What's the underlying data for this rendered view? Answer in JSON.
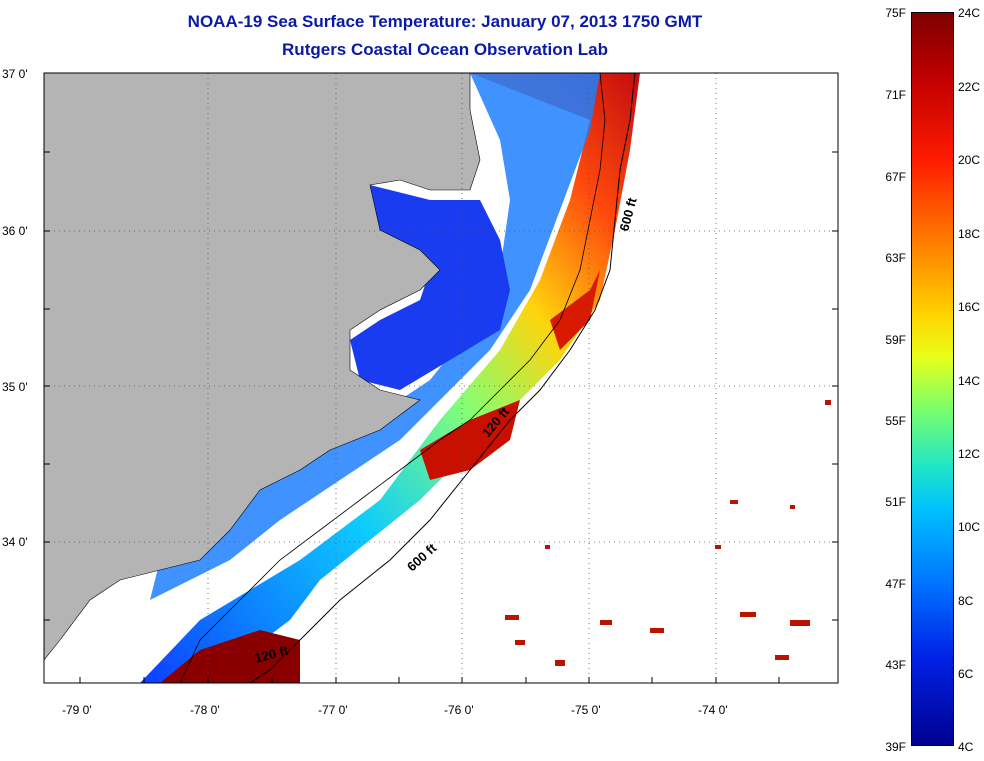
{
  "header": {
    "title": "NOAA-19 Sea Surface Temperature:  January 07, 2013 1750 GMT",
    "subtitle": "Rutgers Coastal Ocean Observation Lab"
  },
  "map": {
    "lat_labels": [
      "37 0'",
      "36 0'",
      "35 0'",
      "34 0'"
    ],
    "lon_labels": [
      "-79 0'",
      "-78 0'",
      "-77 0'",
      "-76 0'",
      "-75 0'",
      "-74 0'"
    ],
    "contour_labels": [
      "600 ft",
      "120 ft",
      "600 ft",
      "120 ft"
    ],
    "colors": {
      "land": "#b4b4b4",
      "ocean_cold": "#1a3cf0",
      "ocean_warm": "#a00000"
    }
  },
  "colorbar": {
    "fahrenheit": [
      "75F",
      "71F",
      "67F",
      "63F",
      "59F",
      "55F",
      "51F",
      "47F",
      "43F",
      "39F"
    ],
    "celsius": [
      "24C",
      "22C",
      "20C",
      "18C",
      "16C",
      "14C",
      "12C",
      "10C",
      "8C",
      "6C",
      "4C"
    ]
  }
}
